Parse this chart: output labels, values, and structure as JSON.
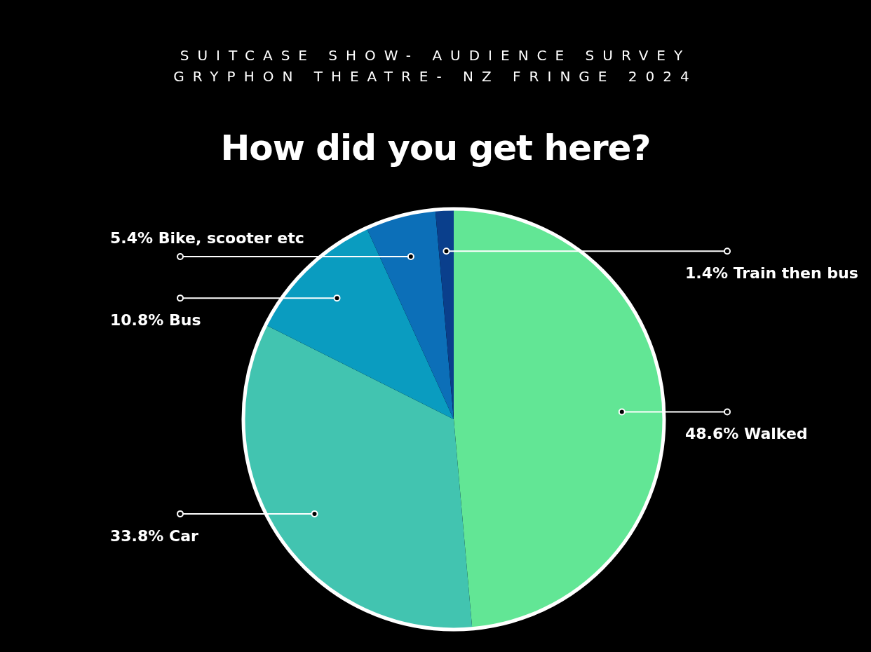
{
  "chart_data": {
    "type": "pie",
    "title": "How did you get here?",
    "annotations": [
      "SUITCASE SHOW- AUDIENCE SURVEY",
      "GRYPHON THEATRE- NZ FRINGE 2024"
    ],
    "categories": [
      "Walked",
      "Car",
      "Bus",
      "Bike, scooter etc",
      "Train then bus"
    ],
    "values": [
      48.6,
      33.8,
      10.8,
      5.4,
      1.4
    ],
    "value_labels": [
      "48.6%",
      "33.8%",
      "10.8%",
      "5.4%",
      "1.4%"
    ],
    "colors": [
      "#62e695",
      "#42c4b0",
      "#0a9cc0",
      "#0c6fb8",
      "#0a3f8c"
    ],
    "legend": false
  }
}
